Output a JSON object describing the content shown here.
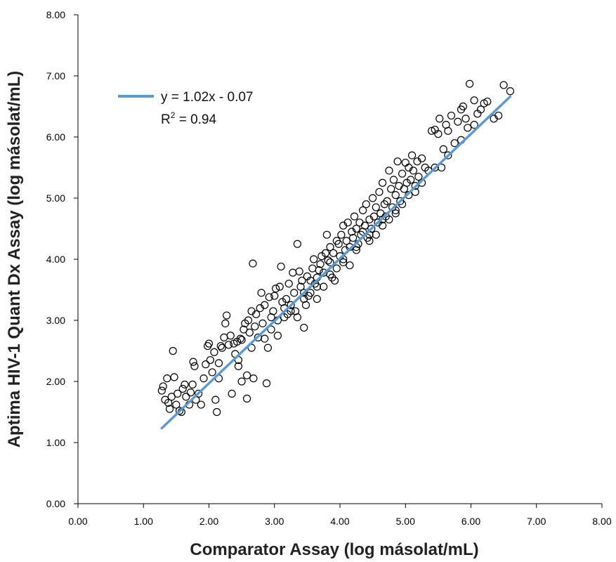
{
  "chart_data": {
    "type": "scatter",
    "xlabel": "Comparator Assay (log másolat/mL)",
    "ylabel": "Aptima HIV-1 Quant Dx Assay (log másolat/mL)",
    "xlim": [
      0,
      8
    ],
    "ylim": [
      0,
      8
    ],
    "xticks": [
      "0.00",
      "1.00",
      "2.00",
      "3.00",
      "4.00",
      "5.00",
      "6.00",
      "7.00",
      "8.00"
    ],
    "yticks": [
      "0.00",
      "1.00",
      "2.00",
      "3.00",
      "4.00",
      "5.00",
      "6.00",
      "7.00",
      "8.00"
    ],
    "grid": false,
    "legend_position": "top-left",
    "trendline": {
      "equation": "y = 1.02x - 0.07",
      "r2_prefix": "R",
      "r2_sup": "2",
      "r2_value": " = 0.94",
      "slope": 1.02,
      "intercept": -0.07,
      "x_range": [
        1.28,
        6.6
      ],
      "color": "#5b9bd5"
    },
    "marker": {
      "shape": "open-circle",
      "color": "#000000"
    },
    "points": [
      [
        1.28,
        1.85
      ],
      [
        1.3,
        1.92
      ],
      [
        1.33,
        1.7
      ],
      [
        1.36,
        2.05
      ],
      [
        1.38,
        1.65
      ],
      [
        1.4,
        1.55
      ],
      [
        1.43,
        1.75
      ],
      [
        1.45,
        2.5
      ],
      [
        1.47,
        2.07
      ],
      [
        1.5,
        1.62
      ],
      [
        1.52,
        1.8
      ],
      [
        1.55,
        1.52
      ],
      [
        1.58,
        1.5
      ],
      [
        1.6,
        1.88
      ],
      [
        1.63,
        1.95
      ],
      [
        1.65,
        1.75
      ],
      [
        1.7,
        1.62
      ],
      [
        1.72,
        1.82
      ],
      [
        1.75,
        1.95
      ],
      [
        1.76,
        2.32
      ],
      [
        1.78,
        2.25
      ],
      [
        1.8,
        1.7
      ],
      [
        1.84,
        1.8
      ],
      [
        1.88,
        1.62
      ],
      [
        1.92,
        2.05
      ],
      [
        1.95,
        2.28
      ],
      [
        1.98,
        2.58
      ],
      [
        2.0,
        2.62
      ],
      [
        2.02,
        2.35
      ],
      [
        2.05,
        2.15
      ],
      [
        2.08,
        2.48
      ],
      [
        2.1,
        1.7
      ],
      [
        2.12,
        1.5
      ],
      [
        2.15,
        2.3
      ],
      [
        2.18,
        2.58
      ],
      [
        2.2,
        2.55
      ],
      [
        2.23,
        2.72
      ],
      [
        2.25,
        2.95
      ],
      [
        2.27,
        3.08
      ],
      [
        2.3,
        2.6
      ],
      [
        2.33,
        2.75
      ],
      [
        2.35,
        1.8
      ],
      [
        2.38,
        2.62
      ],
      [
        2.4,
        2.45
      ],
      [
        2.43,
        2.65
      ],
      [
        2.45,
        2.25
      ],
      [
        2.48,
        2.7
      ],
      [
        2.5,
        2.68
      ],
      [
        2.5,
        2.0
      ],
      [
        2.53,
        2.85
      ],
      [
        2.55,
        2.95
      ],
      [
        2.58,
        1.72
      ],
      [
        2.58,
        2.1
      ],
      [
        2.6,
        3.0
      ],
      [
        2.62,
        2.8
      ],
      [
        2.65,
        3.15
      ],
      [
        2.67,
        3.93
      ],
      [
        2.68,
        2.05
      ],
      [
        2.7,
        2.9
      ],
      [
        2.72,
        3.1
      ],
      [
        2.75,
        2.72
      ],
      [
        2.78,
        3.2
      ],
      [
        2.8,
        3.45
      ],
      [
        2.82,
        2.95
      ],
      [
        2.85,
        3.25
      ],
      [
        2.88,
        1.97
      ],
      [
        2.9,
        2.55
      ],
      [
        2.92,
        3.38
      ],
      [
        2.95,
        3.05
      ],
      [
        2.98,
        3.15
      ],
      [
        3.0,
        3.4
      ],
      [
        3.02,
        3.52
      ],
      [
        3.05,
        2.75
      ],
      [
        3.08,
        3.55
      ],
      [
        3.1,
        3.88
      ],
      [
        3.12,
        3.3
      ],
      [
        3.15,
        3.2
      ],
      [
        3.18,
        3.35
      ],
      [
        3.2,
        3.1
      ],
      [
        3.22,
        3.6
      ],
      [
        3.25,
        3.25
      ],
      [
        3.28,
        3.78
      ],
      [
        3.3,
        3.45
      ],
      [
        3.32,
        3.15
      ],
      [
        3.35,
        4.25
      ],
      [
        3.38,
        3.8
      ],
      [
        3.4,
        3.55
      ],
      [
        3.42,
        3.65
      ],
      [
        3.45,
        2.88
      ],
      [
        3.48,
        3.25
      ],
      [
        3.5,
        3.72
      ],
      [
        3.52,
        3.4
      ],
      [
        3.55,
        3.65
      ],
      [
        3.58,
        3.85
      ],
      [
        3.6,
        4.0
      ],
      [
        3.62,
        3.6
      ],
      [
        3.65,
        3.35
      ],
      [
        3.68,
        3.82
      ],
      [
        3.7,
        3.92
      ],
      [
        3.72,
        4.05
      ],
      [
        3.75,
        3.78
      ],
      [
        3.78,
        4.1
      ],
      [
        3.8,
        4.4
      ],
      [
        3.82,
        3.98
      ],
      [
        3.85,
        4.2
      ],
      [
        3.88,
        3.7
      ],
      [
        3.9,
        4.1
      ],
      [
        3.92,
        3.65
      ],
      [
        3.95,
        4.3
      ],
      [
        3.98,
        4.25
      ],
      [
        4.0,
        4.05
      ],
      [
        4.02,
        4.4
      ],
      [
        4.05,
        4.55
      ],
      [
        4.08,
        4.15
      ],
      [
        4.1,
        4.3
      ],
      [
        4.12,
        4.6
      ],
      [
        4.15,
        3.9
      ],
      [
        4.18,
        4.45
      ],
      [
        4.2,
        4.35
      ],
      [
        4.22,
        4.7
      ],
      [
        4.25,
        4.5
      ],
      [
        4.28,
        4.25
      ],
      [
        4.3,
        4.6
      ],
      [
        4.32,
        4.4
      ],
      [
        4.35,
        4.8
      ],
      [
        4.38,
        4.55
      ],
      [
        4.4,
        4.9
      ],
      [
        4.42,
        4.35
      ],
      [
        4.45,
        4.65
      ],
      [
        4.48,
        4.5
      ],
      [
        4.5,
        5.0
      ],
      [
        4.52,
        4.7
      ],
      [
        4.55,
        4.85
      ],
      [
        4.58,
        4.6
      ],
      [
        4.6,
        5.1
      ],
      [
        4.62,
        4.75
      ],
      [
        4.65,
        5.25
      ],
      [
        4.68,
        4.9
      ],
      [
        4.7,
        4.7
      ],
      [
        4.72,
        4.95
      ],
      [
        4.75,
        5.45
      ],
      [
        4.78,
        5.15
      ],
      [
        4.8,
        4.85
      ],
      [
        4.82,
        5.3
      ],
      [
        4.85,
        5.05
      ],
      [
        4.88,
        5.6
      ],
      [
        4.9,
        5.2
      ],
      [
        4.92,
        4.95
      ],
      [
        4.95,
        5.4
      ],
      [
        4.98,
        5.15
      ],
      [
        5.0,
        5.58
      ],
      [
        5.02,
        5.25
      ],
      [
        5.05,
        5.5
      ],
      [
        5.08,
        5.3
      ],
      [
        5.1,
        5.7
      ],
      [
        5.12,
        5.45
      ],
      [
        5.15,
        5.2
      ],
      [
        5.18,
        5.6
      ],
      [
        5.2,
        5.35
      ],
      [
        5.25,
        5.65
      ],
      [
        5.3,
        5.5
      ],
      [
        5.35,
        5.45
      ],
      [
        5.4,
        6.1
      ],
      [
        5.45,
        6.12
      ],
      [
        5.5,
        6.05
      ],
      [
        5.52,
        6.3
      ],
      [
        5.55,
        5.5
      ],
      [
        5.58,
        5.8
      ],
      [
        5.62,
        6.2
      ],
      [
        5.65,
        6.1
      ],
      [
        5.7,
        6.35
      ],
      [
        5.75,
        5.9
      ],
      [
        5.8,
        6.25
      ],
      [
        5.85,
        6.45
      ],
      [
        5.88,
        6.5
      ],
      [
        5.92,
        6.3
      ],
      [
        5.95,
        6.15
      ],
      [
        5.98,
        6.87
      ],
      [
        6.05,
        6.6
      ],
      [
        6.1,
        6.38
      ],
      [
        6.15,
        6.45
      ],
      [
        6.2,
        6.55
      ],
      [
        6.25,
        6.58
      ],
      [
        6.35,
        6.3
      ],
      [
        6.42,
        6.35
      ],
      [
        6.5,
        6.85
      ],
      [
        6.6,
        6.75
      ],
      [
        3.35,
        3.05
      ],
      [
        3.55,
        3.45
      ],
      [
        3.75,
        3.55
      ],
      [
        3.95,
        3.85
      ],
      [
        4.15,
        4.2
      ],
      [
        4.35,
        4.45
      ],
      [
        4.55,
        4.4
      ],
      [
        4.75,
        4.65
      ],
      [
        4.95,
        4.9
      ],
      [
        5.15,
        5.1
      ],
      [
        2.95,
        2.85
      ],
      [
        3.15,
        3.05
      ],
      [
        3.45,
        3.35
      ],
      [
        3.65,
        3.7
      ],
      [
        3.85,
        3.95
      ],
      [
        4.05,
        3.95
      ],
      [
        4.25,
        4.15
      ],
      [
        4.45,
        4.3
      ],
      [
        4.65,
        4.55
      ],
      [
        4.85,
        4.75
      ],
      [
        2.15,
        2.05
      ],
      [
        2.45,
        2.35
      ],
      [
        2.65,
        2.55
      ],
      [
        2.85,
        2.7
      ],
      [
        3.05,
        3.0
      ],
      [
        3.25,
        3.15
      ],
      [
        3.45,
        3.45
      ],
      [
        3.65,
        3.55
      ],
      [
        3.85,
        3.75
      ],
      [
        4.05,
        4.0
      ],
      [
        4.25,
        4.2
      ],
      [
        4.45,
        4.4
      ],
      [
        4.65,
        4.65
      ],
      [
        4.85,
        4.8
      ],
      [
        5.05,
        5.05
      ],
      [
        5.25,
        5.25
      ],
      [
        5.45,
        5.5
      ],
      [
        5.65,
        5.7
      ],
      [
        5.85,
        5.95
      ],
      [
        6.05,
        6.2
      ]
    ]
  }
}
